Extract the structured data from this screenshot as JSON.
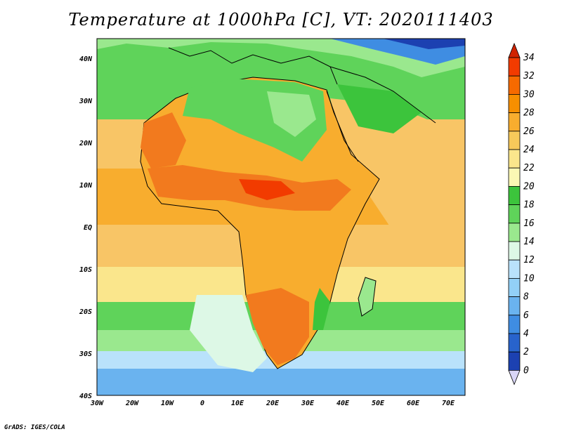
{
  "title": "Temperature at 1000hPa [C], VT: 2020111403",
  "credit": "GrADS: IGES/COLA",
  "lat_labels": [
    "40N",
    "30N",
    "20N",
    "10N",
    "EQ",
    "10S",
    "20S",
    "30S",
    "40S"
  ],
  "lon_labels": [
    "30W",
    "20W",
    "10W",
    "0",
    "10E",
    "20E",
    "30E",
    "40E",
    "50E",
    "60E",
    "70E"
  ],
  "colorbar": {
    "labels": [
      "34",
      "32",
      "30",
      "28",
      "26",
      "24",
      "22",
      "20",
      "18",
      "16",
      "14",
      "12",
      "10",
      "8",
      "6",
      "4",
      "2",
      "0"
    ],
    "colors": [
      "#f23b00",
      "#f66a00",
      "#f78f00",
      "#f8ad2e",
      "#f7c95a",
      "#fae68c",
      "#fbf8b4",
      "#3cc43c",
      "#5fd35a",
      "#9ae88e",
      "#ddf8e6",
      "#b9e2fb",
      "#92d0f7",
      "#6ab3ef",
      "#3f8de2",
      "#2863cc",
      "#1c41b1",
      "#101e80"
    ],
    "top_arrow_color": "#d12300",
    "bottom_arrow_color": "#d9d6f7"
  },
  "palette": {
    "land_hot": "#f27a1e",
    "land_warm": "#f7a246",
    "land_mild": "#f8c566",
    "ocean_warm": "#f7b74f",
    "ocean_cool": "#f9e58d",
    "green": "#5fd35a",
    "light_green": "#9ae88e",
    "pale": "#ddf8e6",
    "cyan": "#b9e2fb",
    "blue": "#6ab3ef",
    "deep_blue": "#2863cc"
  }
}
